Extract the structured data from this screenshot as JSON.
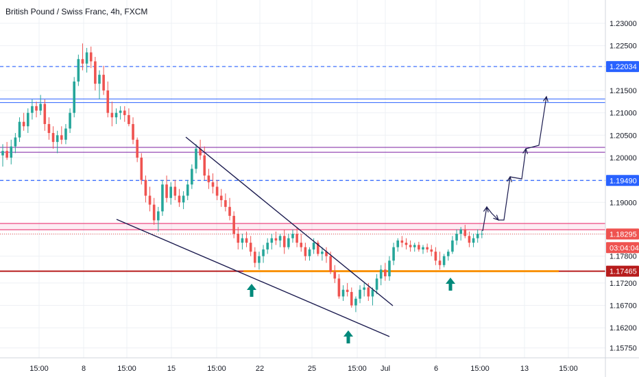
{
  "chart_data": {
    "type": "candlestick",
    "title": "British Pound / Swiss Franc, 4h, FXCM",
    "colors": {
      "up": "#26a69a",
      "down": "#ef5350",
      "price_tag": "#ef5350",
      "level_blue": "#2962ff",
      "level_purple": "#7b1fa2",
      "level_pink": "#e91e63",
      "support_red": "#b71c1c",
      "support_orange": "#ff9800",
      "trendline": "#1a1a4e",
      "arrow_up": "#00897b",
      "grid": "#eef0f4"
    },
    "y_axis": {
      "range": [
        1.1553,
        1.2352
      ],
      "ticks": [
        "1.15750",
        "1.16200",
        "1.16700",
        "1.17200",
        "1.17800",
        "1.18295",
        "1.19000",
        "1.19490",
        "1.20000",
        "1.20500",
        "1.21000",
        "1.21500",
        "1.22034",
        "1.22500",
        "1.23000"
      ]
    },
    "x_axis": {
      "ticks": [
        "15:00",
        "8",
        "15:00",
        "15",
        "15:00",
        "22",
        "25",
        "15:00",
        "Jul",
        "6",
        "15:00",
        "13",
        "15:00"
      ]
    },
    "price_tags": [
      {
        "label": "1.22034",
        "value": 1.22034,
        "style": "blue"
      },
      {
        "label": "1.19490",
        "value": 1.1949,
        "style": "blue"
      },
      {
        "label": "1.18295",
        "value": 1.18295,
        "style": "price"
      },
      {
        "label": "03:04:04",
        "value": 1.1799,
        "style": "price"
      },
      {
        "label": "1.17465",
        "value": 1.17465,
        "style": "red"
      }
    ],
    "horizontal_levels": [
      {
        "value": 1.22034,
        "style": "blue-dashed"
      },
      {
        "value": 1.1949,
        "style": "blue-dashed"
      },
      {
        "value": 1.2131,
        "style": "blue"
      },
      {
        "value": 1.2123,
        "style": "blue"
      },
      {
        "value": 1.2023,
        "style": "purple"
      },
      {
        "value": 1.2012,
        "style": "purple"
      },
      {
        "value": 1.1853,
        "style": "pink"
      },
      {
        "value": 1.1839,
        "style": "pink"
      },
      {
        "value": 1.18295,
        "style": "red-dotted"
      },
      {
        "value": 1.17465,
        "style": "support-red"
      }
    ],
    "series": [
      {
        "type": "ohlc",
        "values": [
          [
            1.2005,
            1.203,
            1.198,
            1.2015
          ],
          [
            1.2015,
            1.2035,
            1.1995,
            1.2
          ],
          [
            1.2,
            1.204,
            1.1985,
            1.2025
          ],
          [
            1.2025,
            1.2055,
            1.201,
            1.2045
          ],
          [
            1.2045,
            1.209,
            1.2035,
            1.208
          ],
          [
            1.208,
            1.21,
            1.206,
            1.207
          ],
          [
            1.207,
            1.211,
            1.2055,
            1.21
          ],
          [
            1.21,
            1.213,
            1.2085,
            1.2115
          ],
          [
            1.2115,
            1.2125,
            1.209,
            1.2105
          ],
          [
            1.2105,
            1.214,
            1.2095,
            1.212
          ],
          [
            1.212,
            1.213,
            1.206,
            1.2075
          ],
          [
            1.2075,
            1.209,
            1.204,
            1.2055
          ],
          [
            1.2055,
            1.207,
            1.202,
            1.2035
          ],
          [
            1.2035,
            1.206,
            1.201,
            1.205
          ],
          [
            1.205,
            1.207,
            1.203,
            1.204
          ],
          [
            1.204,
            1.2075,
            1.203,
            1.2065
          ],
          [
            1.2065,
            1.211,
            1.2055,
            1.21
          ],
          [
            1.21,
            1.218,
            1.209,
            1.217
          ],
          [
            1.217,
            1.223,
            1.216,
            1.222
          ],
          [
            1.222,
            1.2255,
            1.2195,
            1.221
          ],
          [
            1.221,
            1.2245,
            1.219,
            1.2235
          ],
          [
            1.2235,
            1.2248,
            1.22,
            1.2215
          ],
          [
            1.2215,
            1.2225,
            1.215,
            1.2165
          ],
          [
            1.2165,
            1.2195,
            1.213,
            1.2185
          ],
          [
            1.2185,
            1.2205,
            1.214,
            1.215
          ],
          [
            1.215,
            1.217,
            1.209,
            1.21
          ],
          [
            1.21,
            1.2125,
            1.207,
            1.209
          ],
          [
            1.209,
            1.211,
            1.2075,
            1.21
          ],
          [
            1.21,
            1.2115,
            1.2085,
            1.2105
          ],
          [
            1.2105,
            1.2115,
            1.208,
            1.2095
          ],
          [
            1.2095,
            1.211,
            1.207,
            1.2075
          ],
          [
            1.2075,
            1.209,
            1.203,
            1.204
          ],
          [
            1.204,
            1.2045,
            1.199,
            1.2
          ],
          [
            1.2,
            1.201,
            1.194,
            1.195
          ],
          [
            1.195,
            1.196,
            1.19,
            1.1915
          ],
          [
            1.1915,
            1.1935,
            1.188,
            1.1895
          ],
          [
            1.1895,
            1.191,
            1.185,
            1.186
          ],
          [
            1.186,
            1.189,
            1.1835,
            1.188
          ],
          [
            1.188,
            1.195,
            1.187,
            1.194
          ],
          [
            1.194,
            1.196,
            1.19,
            1.191
          ],
          [
            1.191,
            1.1945,
            1.1895,
            1.1935
          ],
          [
            1.1935,
            1.195,
            1.1905,
            1.1915
          ],
          [
            1.1915,
            1.193,
            1.189,
            1.19
          ],
          [
            1.19,
            1.1925,
            1.1885,
            1.1915
          ],
          [
            1.1915,
            1.195,
            1.1905,
            1.194
          ],
          [
            1.194,
            1.1985,
            1.193,
            1.1975
          ],
          [
            1.1975,
            1.203,
            1.1965,
            1.202
          ],
          [
            1.202,
            1.204,
            1.1995,
            1.2005
          ],
          [
            1.2005,
            1.2025,
            1.195,
            1.196
          ],
          [
            1.196,
            1.1975,
            1.193,
            1.1945
          ],
          [
            1.1945,
            1.1965,
            1.192,
            1.1935
          ],
          [
            1.1935,
            1.195,
            1.1905,
            1.1915
          ],
          [
            1.1915,
            1.193,
            1.189,
            1.1905
          ],
          [
            1.1905,
            1.192,
            1.188,
            1.189
          ],
          [
            1.189,
            1.191,
            1.186,
            1.187
          ],
          [
            1.187,
            1.188,
            1.182,
            1.183
          ],
          [
            1.183,
            1.1845,
            1.1795,
            1.181
          ],
          [
            1.181,
            1.183,
            1.1795,
            1.182
          ],
          [
            1.182,
            1.1835,
            1.18,
            1.181
          ],
          [
            1.181,
            1.1825,
            1.178,
            1.179
          ],
          [
            1.179,
            1.18,
            1.1755,
            1.1765
          ],
          [
            1.1765,
            1.179,
            1.175,
            1.178
          ],
          [
            1.178,
            1.1805,
            1.1765,
            1.1795
          ],
          [
            1.1795,
            1.182,
            1.1785,
            1.181
          ],
          [
            1.181,
            1.183,
            1.1795,
            1.182
          ],
          [
            1.182,
            1.1835,
            1.1805,
            1.1815
          ],
          [
            1.1815,
            1.183,
            1.18,
            1.1825
          ],
          [
            1.1825,
            1.184,
            1.1785,
            1.18
          ],
          [
            1.18,
            1.183,
            1.1795,
            1.182
          ],
          [
            1.182,
            1.184,
            1.181,
            1.183
          ],
          [
            1.183,
            1.1845,
            1.18,
            1.181
          ],
          [
            1.181,
            1.183,
            1.179,
            1.18
          ],
          [
            1.18,
            1.181,
            1.177,
            1.178
          ],
          [
            1.178,
            1.18,
            1.177,
            1.1795
          ],
          [
            1.1795,
            1.182,
            1.1785,
            1.181
          ],
          [
            1.181,
            1.1815,
            1.178,
            1.1785
          ],
          [
            1.1785,
            1.18,
            1.177,
            1.179
          ],
          [
            1.179,
            1.18,
            1.1765,
            1.178
          ],
          [
            1.178,
            1.179,
            1.174,
            1.1745
          ],
          [
            1.1745,
            1.176,
            1.172,
            1.173
          ],
          [
            1.173,
            1.174,
            1.1685,
            1.169
          ],
          [
            1.169,
            1.1715,
            1.168,
            1.1705
          ],
          [
            1.1705,
            1.172,
            1.169,
            1.17
          ],
          [
            1.17,
            1.171,
            1.1665,
            1.167
          ],
          [
            1.167,
            1.169,
            1.1655,
            1.1685
          ],
          [
            1.1685,
            1.1715,
            1.1675,
            1.1705
          ],
          [
            1.1705,
            1.172,
            1.169,
            1.171
          ],
          [
            1.171,
            1.172,
            1.168,
            1.169
          ],
          [
            1.169,
            1.171,
            1.167,
            1.1705
          ],
          [
            1.1705,
            1.174,
            1.1695,
            1.173
          ],
          [
            1.173,
            1.176,
            1.1715,
            1.175
          ],
          [
            1.175,
            1.1765,
            1.1725,
            1.1735
          ],
          [
            1.1735,
            1.178,
            1.1725,
            1.177
          ],
          [
            1.177,
            1.181,
            1.176,
            1.18
          ],
          [
            1.18,
            1.182,
            1.179,
            1.1815
          ],
          [
            1.1815,
            1.1825,
            1.18,
            1.181
          ],
          [
            1.181,
            1.182,
            1.1795,
            1.1805
          ],
          [
            1.1805,
            1.1815,
            1.179,
            1.18
          ],
          [
            1.18,
            1.181,
            1.179,
            1.1805
          ],
          [
            1.1805,
            1.1812,
            1.179,
            1.1795
          ],
          [
            1.1795,
            1.1805,
            1.1785,
            1.18
          ],
          [
            1.18,
            1.1808,
            1.1788,
            1.1795
          ],
          [
            1.1795,
            1.1805,
            1.178,
            1.179
          ],
          [
            1.179,
            1.18,
            1.176,
            1.177
          ],
          [
            1.177,
            1.179,
            1.175,
            1.176
          ],
          [
            1.176,
            1.1785,
            1.1755,
            1.178
          ],
          [
            1.178,
            1.1795,
            1.177,
            1.179
          ],
          [
            1.179,
            1.1825,
            1.1785,
            1.1815
          ],
          [
            1.1815,
            1.184,
            1.1805,
            1.183
          ],
          [
            1.183,
            1.1845,
            1.1815,
            1.184
          ],
          [
            1.184,
            1.185,
            1.182,
            1.1825
          ],
          [
            1.1825,
            1.1835,
            1.18,
            1.181
          ],
          [
            1.181,
            1.183,
            1.18,
            1.182
          ],
          [
            1.182,
            1.184,
            1.181,
            1.183
          ],
          [
            1.183,
            1.1838,
            1.182,
            1.183
          ]
        ]
      }
    ],
    "annotations": [
      {
        "kind": "arrow-up",
        "position": "below the first higher low near 22"
      },
      {
        "kind": "arrow-up",
        "position": "below the low near 25"
      },
      {
        "kind": "arrow-up",
        "position": "below the higher low near 6 Jul"
      },
      {
        "kind": "falling-wedge",
        "position": "two converging trendlines from 15 to the end of June"
      },
      {
        "kind": "projected-path",
        "position": "zigzag toward the upper blue zone"
      }
    ]
  }
}
